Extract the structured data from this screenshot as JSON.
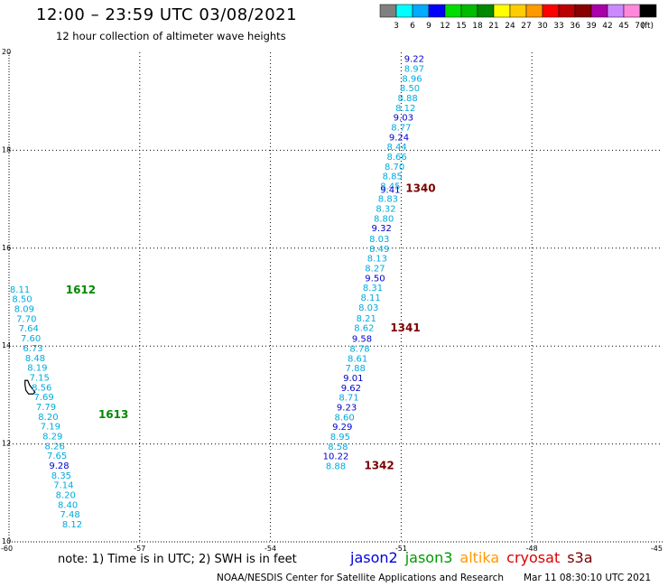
{
  "header": {
    "title": "12:00 – 23:59 UTC 03/08/2021",
    "subtitle": "12 hour collection of altimeter wave heights"
  },
  "color_scale": {
    "unit": "(ft)",
    "bins": [
      {
        "label": "3",
        "color": "#808080"
      },
      {
        "label": "6",
        "color": "#00ffff"
      },
      {
        "label": "9",
        "color": "#00aaff"
      },
      {
        "label": "12",
        "color": "#0000ff"
      },
      {
        "label": "15",
        "color": "#00dd00"
      },
      {
        "label": "18",
        "color": "#00bb00"
      },
      {
        "label": "21",
        "color": "#008800"
      },
      {
        "label": "24",
        "color": "#ffff00"
      },
      {
        "label": "27",
        "color": "#ffcc00"
      },
      {
        "label": "30",
        "color": "#ff9900"
      },
      {
        "label": "33",
        "color": "#ff0000"
      },
      {
        "label": "36",
        "color": "#bb0000"
      },
      {
        "label": "39",
        "color": "#880000"
      },
      {
        "label": "42",
        "color": "#aa00aa"
      },
      {
        "label": "45",
        "color": "#cc88ff"
      },
      {
        "label": "70",
        "color": "#ff88dd"
      },
      {
        "label": "",
        "color": "#000000"
      }
    ]
  },
  "map": {
    "lon_range": [
      -60,
      -45
    ],
    "lat_range": [
      10,
      20
    ],
    "lon_ticks": [
      "-60",
      "-57",
      "-54",
      "-51",
      "-48",
      "-45"
    ],
    "lat_ticks": [
      "20",
      "18",
      "16",
      "14",
      "12",
      "10"
    ],
    "grid_lons": [
      -57,
      -54,
      -51,
      -48
    ],
    "grid_lats": [
      18,
      16,
      14,
      12
    ]
  },
  "colors": {
    "light_blue": "#00aadd",
    "dark_blue": "#0000cc",
    "time_jason3": "#008800",
    "time_cryosat": "#7a0000",
    "coast": "#000000"
  },
  "tracks": [
    {
      "name": "east",
      "points": [
        {
          "lon": -50.7,
          "lat": 19.86,
          "v": "9.22",
          "c": "dark_blue"
        },
        {
          "lon": -50.7,
          "lat": 19.66,
          "v": "8.97",
          "c": "light_blue"
        },
        {
          "lon": -50.75,
          "lat": 19.46,
          "v": "8.96",
          "c": "light_blue"
        },
        {
          "lon": -50.8,
          "lat": 19.26,
          "v": "8.50",
          "c": "light_blue"
        },
        {
          "lon": -50.85,
          "lat": 19.06,
          "v": "8.88",
          "c": "light_blue"
        },
        {
          "lon": -50.9,
          "lat": 18.86,
          "v": "8.12",
          "c": "light_blue"
        },
        {
          "lon": -50.95,
          "lat": 18.66,
          "v": "9.03",
          "c": "dark_blue"
        },
        {
          "lon": -51.0,
          "lat": 18.46,
          "v": "8.77",
          "c": "light_blue"
        },
        {
          "lon": -51.05,
          "lat": 18.26,
          "v": "9.24",
          "c": "dark_blue"
        },
        {
          "lon": -51.1,
          "lat": 18.06,
          "v": "8.44",
          "c": "light_blue"
        },
        {
          "lon": -51.1,
          "lat": 17.86,
          "v": "8.66",
          "c": "light_blue"
        },
        {
          "lon": -51.15,
          "lat": 17.66,
          "v": "8.70",
          "c": "light_blue"
        },
        {
          "lon": -51.2,
          "lat": 17.46,
          "v": "8.85",
          "c": "light_blue"
        },
        {
          "lon": -51.25,
          "lat": 17.26,
          "v": "8.45",
          "c": "light_blue"
        },
        {
          "lon": -51.25,
          "lat": 17.19,
          "v": "9.41",
          "c": "dark_blue"
        },
        {
          "lon": -51.3,
          "lat": 17.0,
          "v": "8.83",
          "c": "light_blue"
        },
        {
          "lon": -51.35,
          "lat": 16.8,
          "v": "8.32",
          "c": "light_blue"
        },
        {
          "lon": -51.4,
          "lat": 16.6,
          "v": "8.80",
          "c": "light_blue"
        },
        {
          "lon": -51.45,
          "lat": 16.4,
          "v": "9.32",
          "c": "dark_blue"
        },
        {
          "lon": -51.5,
          "lat": 16.18,
          "v": "8.03",
          "c": "light_blue"
        },
        {
          "lon": -51.5,
          "lat": 15.98,
          "v": "8.49",
          "c": "light_blue"
        },
        {
          "lon": -51.55,
          "lat": 15.78,
          "v": "8.13",
          "c": "light_blue"
        },
        {
          "lon": -51.6,
          "lat": 15.58,
          "v": "8.27",
          "c": "light_blue"
        },
        {
          "lon": -51.6,
          "lat": 15.38,
          "v": "9.50",
          "c": "dark_blue"
        },
        {
          "lon": -51.65,
          "lat": 15.18,
          "v": "8.31",
          "c": "light_blue"
        },
        {
          "lon": -51.7,
          "lat": 14.98,
          "v": "8.11",
          "c": "light_blue"
        },
        {
          "lon": -51.75,
          "lat": 14.78,
          "v": "8.03",
          "c": "light_blue"
        },
        {
          "lon": -51.8,
          "lat": 14.56,
          "v": "8.21",
          "c": "light_blue"
        },
        {
          "lon": -51.85,
          "lat": 14.36,
          "v": "8.62",
          "c": "light_blue"
        },
        {
          "lon": -51.9,
          "lat": 14.14,
          "v": "9.58",
          "c": "dark_blue"
        },
        {
          "lon": -51.95,
          "lat": 13.94,
          "v": "8.78",
          "c": "light_blue"
        },
        {
          "lon": -52.0,
          "lat": 13.74,
          "v": "8.61",
          "c": "light_blue"
        },
        {
          "lon": -52.05,
          "lat": 13.54,
          "v": "7.88",
          "c": "light_blue"
        },
        {
          "lon": -52.1,
          "lat": 13.34,
          "v": "9.01",
          "c": "dark_blue"
        },
        {
          "lon": -52.15,
          "lat": 13.14,
          "v": "9.62",
          "c": "dark_blue"
        },
        {
          "lon": -52.2,
          "lat": 12.94,
          "v": "8.71",
          "c": "light_blue"
        },
        {
          "lon": -52.25,
          "lat": 12.74,
          "v": "9.23",
          "c": "dark_blue"
        },
        {
          "lon": -52.3,
          "lat": 12.54,
          "v": "8.60",
          "c": "light_blue"
        },
        {
          "lon": -52.35,
          "lat": 12.34,
          "v": "9.29",
          "c": "dark_blue"
        },
        {
          "lon": -52.4,
          "lat": 12.14,
          "v": "8.95",
          "c": "light_blue"
        },
        {
          "lon": -52.45,
          "lat": 11.94,
          "v": "8.58",
          "c": "light_blue"
        },
        {
          "lon": -52.5,
          "lat": 11.74,
          "v": "10.22",
          "c": "dark_blue"
        },
        {
          "lon": -52.5,
          "lat": 11.54,
          "v": "8.88",
          "c": "light_blue"
        }
      ],
      "times": [
        {
          "lon": -50.9,
          "lat": 17.22,
          "t": "1340",
          "c": "time_cryosat"
        },
        {
          "lon": -51.25,
          "lat": 14.37,
          "t": "1341",
          "c": "time_cryosat"
        },
        {
          "lon": -51.85,
          "lat": 11.56,
          "t": "1342",
          "c": "time_cryosat"
        }
      ]
    },
    {
      "name": "west",
      "points": [
        {
          "lon": -59.75,
          "lat": 15.15,
          "v": "8.11",
          "c": "light_blue"
        },
        {
          "lon": -59.7,
          "lat": 14.95,
          "v": "8.50",
          "c": "light_blue"
        },
        {
          "lon": -59.65,
          "lat": 14.75,
          "v": "8.09",
          "c": "light_blue"
        },
        {
          "lon": -59.6,
          "lat": 14.55,
          "v": "7.70",
          "c": "light_blue"
        },
        {
          "lon": -59.55,
          "lat": 14.35,
          "v": "7.64",
          "c": "light_blue"
        },
        {
          "lon": -59.5,
          "lat": 14.15,
          "v": "7.60",
          "c": "light_blue"
        },
        {
          "lon": -59.45,
          "lat": 13.95,
          "v": "6.73",
          "c": "light_blue"
        },
        {
          "lon": -59.4,
          "lat": 13.75,
          "v": "8.48",
          "c": "light_blue"
        },
        {
          "lon": -59.35,
          "lat": 13.55,
          "v": "8.19",
          "c": "light_blue"
        },
        {
          "lon": -59.3,
          "lat": 13.35,
          "v": "7.15",
          "c": "light_blue"
        },
        {
          "lon": -59.25,
          "lat": 13.15,
          "v": "8.56",
          "c": "light_blue"
        },
        {
          "lon": -59.2,
          "lat": 12.95,
          "v": "7.69",
          "c": "light_blue"
        },
        {
          "lon": -59.15,
          "lat": 12.75,
          "v": "7.79",
          "c": "light_blue"
        },
        {
          "lon": -59.1,
          "lat": 12.55,
          "v": "8.20",
          "c": "light_blue"
        },
        {
          "lon": -59.05,
          "lat": 12.35,
          "v": "7.19",
          "c": "light_blue"
        },
        {
          "lon": -59.0,
          "lat": 12.15,
          "v": "8.29",
          "c": "light_blue"
        },
        {
          "lon": -58.95,
          "lat": 11.95,
          "v": "8.26",
          "c": "light_blue"
        },
        {
          "lon": -58.9,
          "lat": 11.75,
          "v": "7.65",
          "c": "light_blue"
        },
        {
          "lon": -58.85,
          "lat": 11.55,
          "v": "9.28",
          "c": "dark_blue"
        },
        {
          "lon": -58.8,
          "lat": 11.35,
          "v": "8.35",
          "c": "light_blue"
        },
        {
          "lon": -58.75,
          "lat": 11.15,
          "v": "7.14",
          "c": "light_blue"
        },
        {
          "lon": -58.7,
          "lat": 10.95,
          "v": "8.20",
          "c": "light_blue"
        },
        {
          "lon": -58.65,
          "lat": 10.75,
          "v": "8.40",
          "c": "light_blue"
        },
        {
          "lon": -58.6,
          "lat": 10.55,
          "v": "7.48",
          "c": "light_blue"
        },
        {
          "lon": -58.55,
          "lat": 10.35,
          "v": "8.12",
          "c": "light_blue"
        }
      ],
      "times": [
        {
          "lon": -58.7,
          "lat": 15.15,
          "t": "1612",
          "c": "time_jason3"
        },
        {
          "lon": -57.95,
          "lat": 12.6,
          "t": "1613",
          "c": "time_jason3"
        }
      ]
    }
  ],
  "footer": {
    "note": "note: 1) Time is in UTC; 2) SWH is in feet",
    "legend": [
      {
        "label": "jason2",
        "color": "#0000dd"
      },
      {
        "label": "jason3",
        "color": "#009900"
      },
      {
        "label": "altika",
        "color": "#ff9900"
      },
      {
        "label": "cryosat",
        "color": "#dd0000"
      },
      {
        "label": "s3a",
        "color": "#7a0000"
      }
    ],
    "credit": "NOAA/NESDIS Center for Satellite Applications and Research",
    "timestamp": "Mar 11 08:30:10 UTC 2021"
  }
}
